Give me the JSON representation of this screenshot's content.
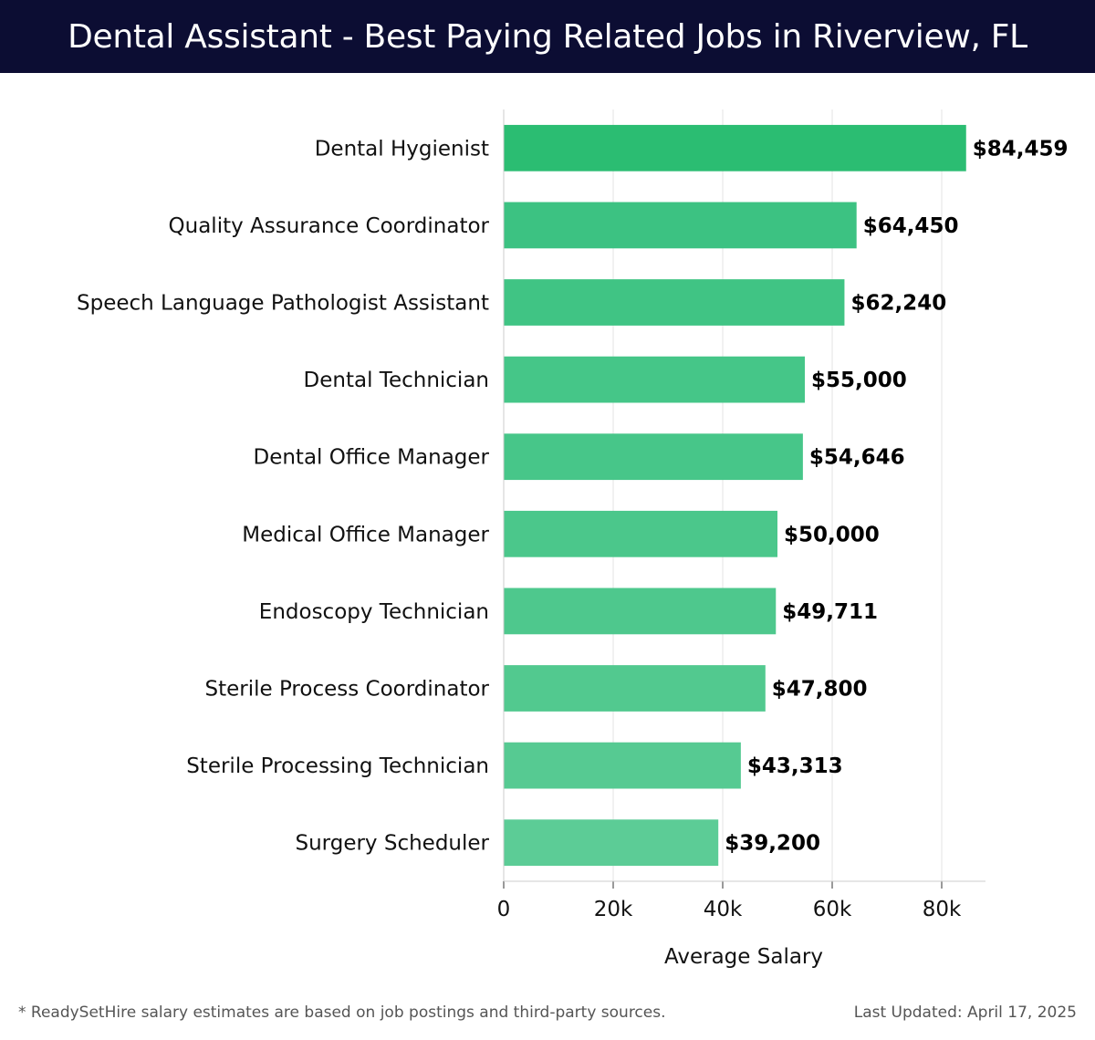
{
  "header": {
    "title": "Dental Assistant - Best Paying Related Jobs in Riverview, FL"
  },
  "chart_data": {
    "type": "bar",
    "orientation": "horizontal",
    "title": "Dental Assistant - Best Paying Related Jobs in Riverview, FL",
    "xlabel": "Average Salary",
    "ylabel": "",
    "xlim": [
      0,
      88000
    ],
    "xticks": [
      0,
      20000,
      40000,
      60000,
      80000
    ],
    "xtick_labels": [
      "0",
      "20k",
      "40k",
      "60k",
      "80k"
    ],
    "grid": "vertical",
    "categories": [
      "Dental Hygienist",
      "Quality Assurance Coordinator",
      "Speech Language Pathologist Assistant",
      "Dental Technician",
      "Dental Office Manager",
      "Medical Office Manager",
      "Endoscopy Technician",
      "Sterile Process Coordinator",
      "Sterile Processing Technician",
      "Surgery Scheduler"
    ],
    "values": [
      84459,
      64450,
      62240,
      55000,
      54646,
      50000,
      49711,
      47800,
      43313,
      39200
    ],
    "value_labels": [
      "$84,459",
      "$64,450",
      "$62,240",
      "$55,000",
      "$54,646",
      "$50,000",
      "$49,711",
      "$47,800",
      "$43,313",
      "$39,200"
    ],
    "bar_colors": [
      "#2bbd72",
      "#3cc282",
      "#40c484",
      "#45c688",
      "#47c689",
      "#4bc78b",
      "#4ec88d",
      "#52c98f",
      "#56ca92",
      "#5ccc96"
    ]
  },
  "footer": {
    "note": "* ReadySetHire salary estimates are based on job postings and third-party sources.",
    "updated": "Last Updated: April 17, 2025"
  }
}
